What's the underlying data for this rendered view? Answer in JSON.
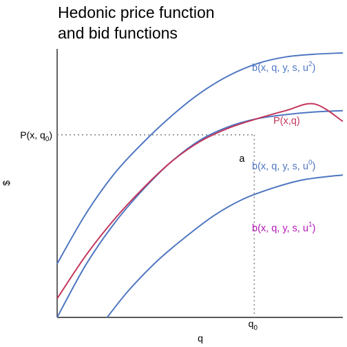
{
  "chart_data": {
    "type": "line",
    "title_lines": [
      "Hedonic price function",
      "and bid functions"
    ],
    "xlabel": "q",
    "ylabel": "$",
    "xlim": [
      0,
      10
    ],
    "ylim": [
      0,
      10
    ],
    "grid": false,
    "legend": "none",
    "series": [
      {
        "key": "b2",
        "label": "b(x, q, y, s, u",
        "label_sup": "2",
        "label_tail": ")",
        "color": "#4e76c1",
        "x": [
          0,
          1,
          2,
          3,
          4,
          5,
          6,
          7,
          8,
          9,
          10
        ],
        "y": [
          2.0,
          3.85,
          5.35,
          6.5,
          7.5,
          8.35,
          9.0,
          9.45,
          9.7,
          9.8,
          9.85
        ]
      },
      {
        "key": "P",
        "label": "P(x,q)",
        "color": "#c2365c",
        "x": [
          0,
          1,
          2,
          3,
          4,
          5,
          6,
          7,
          8,
          9,
          10
        ],
        "y": [
          0.7,
          2.3,
          3.65,
          4.8,
          5.8,
          6.55,
          7.05,
          7.4,
          7.7,
          7.95,
          7.3
        ]
      },
      {
        "key": "b0",
        "label": "b(x, q, y, s, u",
        "label_sup": "0",
        "label_tail": ")",
        "color": "#4e76c1",
        "x": [
          0,
          1,
          2,
          3,
          4,
          5,
          6,
          7,
          8,
          9,
          10
        ],
        "y": [
          0,
          1.95,
          3.5,
          4.75,
          5.8,
          6.6,
          7.1,
          7.4,
          7.55,
          7.65,
          7.7
        ]
      },
      {
        "key": "b1",
        "label": "b(x, q, y, s, u",
        "label_sup": "1",
        "label_tail": ")",
        "color": "#4e76c1",
        "label_color": "#b316b3",
        "x": [
          1.75,
          2.5,
          3.5,
          4.5,
          5.5,
          6.5,
          7.5,
          8.5,
          9.5,
          10
        ],
        "y": [
          0,
          1.0,
          2.1,
          3.0,
          3.8,
          4.4,
          4.8,
          5.1,
          5.25,
          5.3
        ]
      }
    ],
    "reference": {
      "q0": 6.9,
      "p_at_q0": 6.8,
      "ytick_label": "P(x, q",
      "ytick_sub": "0",
      "ytick_tail": ")",
      "xtick_label": "q",
      "xtick_sub": "0",
      "point_label": "a"
    }
  }
}
